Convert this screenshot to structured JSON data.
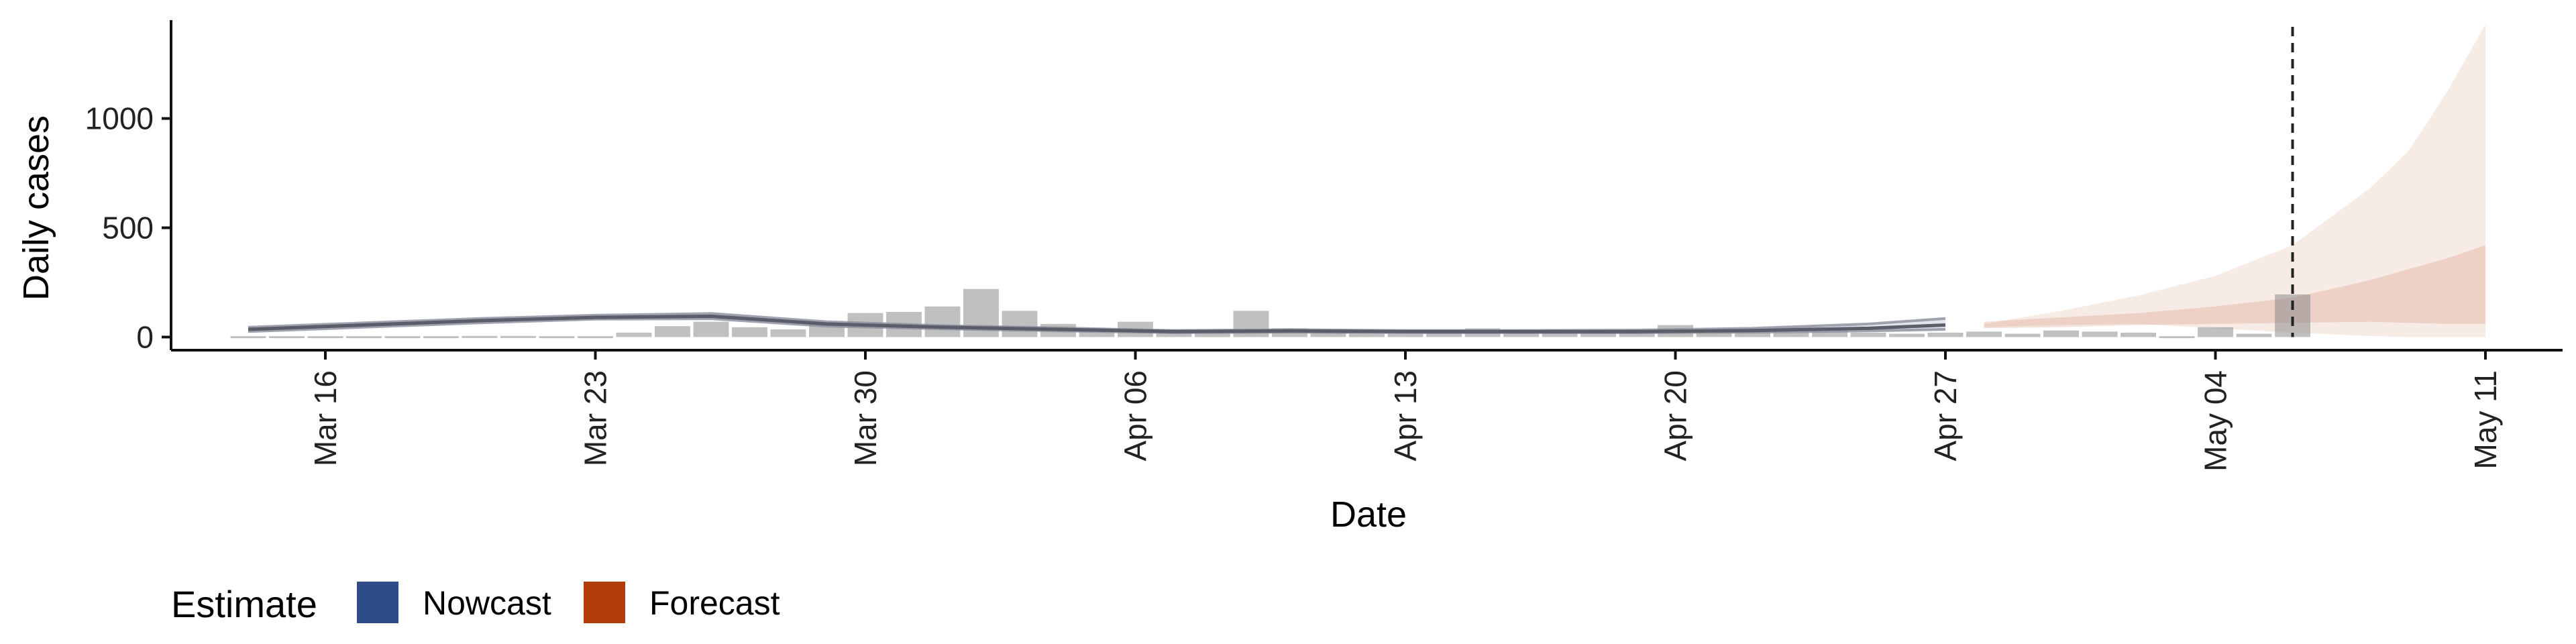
{
  "chart_data": {
    "type": "bar",
    "x_axis": {
      "label": "Date",
      "type": "date",
      "range": [
        "2020-03-12",
        "2020-05-13"
      ],
      "ticks": [
        {
          "date": "2020-03-16",
          "label": "Mar 16"
        },
        {
          "date": "2020-03-23",
          "label": "Mar 23"
        },
        {
          "date": "2020-03-30",
          "label": "Mar 30"
        },
        {
          "date": "2020-04-06",
          "label": "Apr 06"
        },
        {
          "date": "2020-04-13",
          "label": "Apr 13"
        },
        {
          "date": "2020-04-20",
          "label": "Apr 20"
        },
        {
          "date": "2020-04-27",
          "label": "Apr 27"
        },
        {
          "date": "2020-05-04",
          "label": "May 04"
        },
        {
          "date": "2020-05-11",
          "label": "May 11"
        }
      ]
    },
    "y_axis": {
      "label": "Daily cases",
      "range": [
        -60,
        1450
      ],
      "ticks": [
        0,
        500,
        1000
      ]
    },
    "grid": false,
    "legend": {
      "title": "Estimate",
      "position": "bottom-left",
      "items": [
        {
          "label": "Nowcast",
          "color": "#2f4b8a"
        },
        {
          "label": "Forecast",
          "color": "#b33c0b"
        }
      ]
    },
    "reported_cases": {
      "dates": [
        "2020-03-14",
        "2020-03-15",
        "2020-03-16",
        "2020-03-17",
        "2020-03-18",
        "2020-03-19",
        "2020-03-20",
        "2020-03-21",
        "2020-03-22",
        "2020-03-23",
        "2020-03-24",
        "2020-03-25",
        "2020-03-26",
        "2020-03-27",
        "2020-03-28",
        "2020-03-29",
        "2020-03-30",
        "2020-03-31",
        "2020-04-01",
        "2020-04-02",
        "2020-04-03",
        "2020-04-04",
        "2020-04-05",
        "2020-04-06",
        "2020-04-07",
        "2020-04-08",
        "2020-04-09",
        "2020-04-10",
        "2020-04-11",
        "2020-04-12",
        "2020-04-13",
        "2020-04-14",
        "2020-04-15",
        "2020-04-16",
        "2020-04-17",
        "2020-04-18",
        "2020-04-19",
        "2020-04-20",
        "2020-04-21",
        "2020-04-22",
        "2020-04-23",
        "2020-04-24",
        "2020-04-25",
        "2020-04-26",
        "2020-04-27",
        "2020-04-28",
        "2020-04-29",
        "2020-04-30",
        "2020-05-01",
        "2020-05-02",
        "2020-05-03",
        "2020-05-04",
        "2020-05-05",
        "2020-05-06"
      ],
      "values": [
        2,
        1,
        2,
        1,
        0,
        4,
        5,
        5,
        3,
        3,
        20,
        50,
        70,
        45,
        35,
        60,
        110,
        115,
        140,
        220,
        120,
        60,
        35,
        70,
        35,
        30,
        120,
        40,
        20,
        15,
        15,
        20,
        40,
        20,
        35,
        20,
        25,
        55,
        35,
        30,
        25,
        35,
        20,
        15,
        20,
        25,
        15,
        30,
        25,
        20,
        0,
        45,
        15,
        195
      ]
    },
    "nowcast_median": {
      "dates": [
        "2020-03-14",
        "2020-03-17",
        "2020-03-20",
        "2020-03-23",
        "2020-03-26",
        "2020-03-29",
        "2020-04-01",
        "2020-04-04",
        "2020-04-07",
        "2020-04-10",
        "2020-04-13",
        "2020-04-16",
        "2020-04-19",
        "2020-04-22",
        "2020-04-25",
        "2020-04-27"
      ],
      "values": [
        35,
        55,
        75,
        90,
        95,
        60,
        45,
        35,
        25,
        28,
        25,
        25,
        25,
        30,
        40,
        55
      ]
    },
    "nowcast_ribbon": {
      "dates": [
        "2020-03-14",
        "2020-03-17",
        "2020-03-20",
        "2020-03-23",
        "2020-03-26",
        "2020-03-29",
        "2020-04-01",
        "2020-04-04",
        "2020-04-07",
        "2020-04-10",
        "2020-04-13",
        "2020-04-16",
        "2020-04-19",
        "2020-04-22",
        "2020-04-25",
        "2020-04-27"
      ],
      "lower": [
        25,
        45,
        65,
        82,
        84,
        50,
        38,
        28,
        20,
        22,
        20,
        20,
        20,
        22,
        28,
        35
      ],
      "upper": [
        45,
        65,
        85,
        100,
        108,
        70,
        52,
        42,
        30,
        34,
        30,
        30,
        32,
        40,
        60,
        85
      ]
    },
    "forecast_outer": {
      "dates": [
        "2020-04-28",
        "2020-04-30",
        "2020-05-02",
        "2020-05-04",
        "2020-05-06",
        "2020-05-08",
        "2020-05-09",
        "2020-05-10",
        "2020-05-11"
      ],
      "lower": [
        45,
        55,
        60,
        40,
        20,
        5,
        0,
        0,
        0
      ],
      "upper": [
        60,
        120,
        190,
        280,
        420,
        680,
        850,
        1120,
        1430
      ]
    },
    "forecast_inner": {
      "dates": [
        "2020-04-28",
        "2020-04-30",
        "2020-05-02",
        "2020-05-04",
        "2020-05-06",
        "2020-05-08",
        "2020-05-09",
        "2020-05-10",
        "2020-05-11"
      ],
      "lower": [
        40,
        45,
        55,
        60,
        65,
        70,
        65,
        60,
        60
      ],
      "upper": [
        70,
        90,
        110,
        140,
        180,
        260,
        310,
        360,
        420
      ]
    },
    "reference_line": {
      "date": "2020-05-06"
    }
  }
}
